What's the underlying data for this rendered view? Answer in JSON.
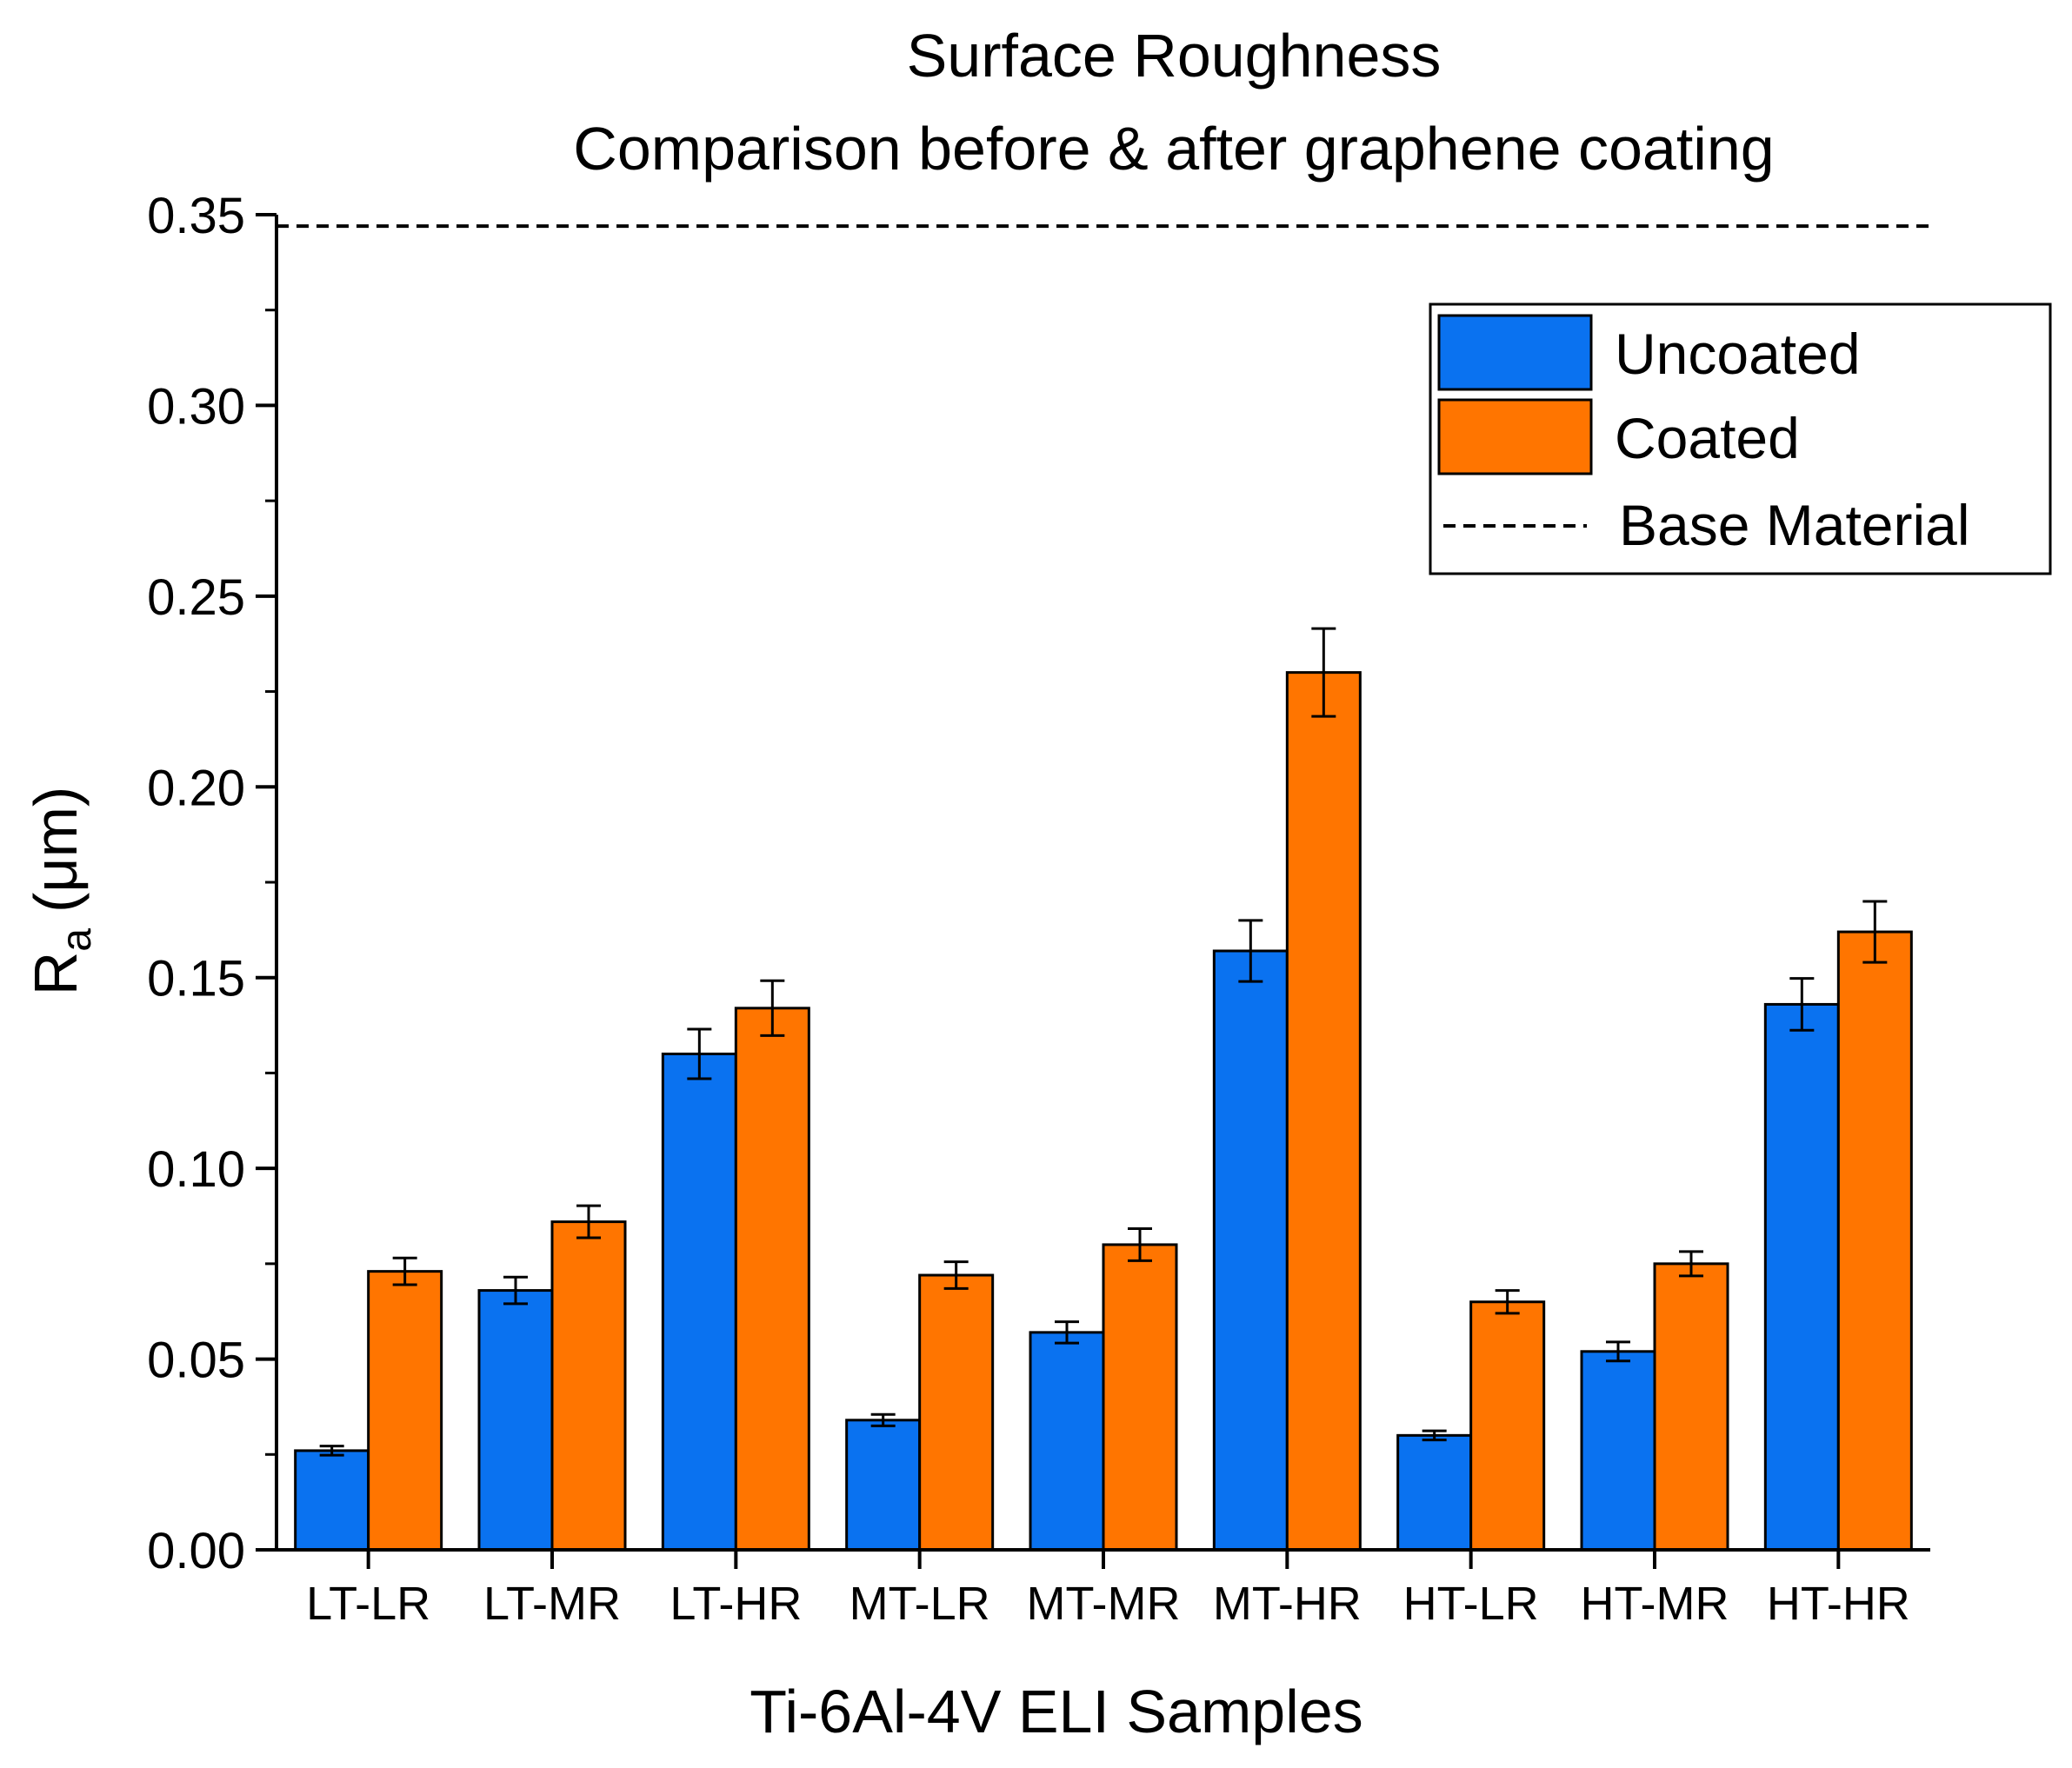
{
  "chart_data": {
    "type": "bar",
    "title": "Surface Roughness",
    "subtitle": "Comparison before & after graphene coating",
    "xlabel": "Ti-6Al-4V ELI Samples",
    "ylabel_main": "R",
    "ylabel_sub": "a",
    "ylabel_unit": "(μm)",
    "ylim": [
      0,
      0.35
    ],
    "yticks": [
      "0.00",
      "0.05",
      "0.10",
      "0.15",
      "0.20",
      "0.25",
      "0.30",
      "0.35"
    ],
    "categories": [
      "LT-LR",
      "LT-MR",
      "LT-HR",
      "MT-LR",
      "MT-MR",
      "MT-HR",
      "HT-LR",
      "HT-MR",
      "HT-HR"
    ],
    "series": [
      {
        "name": "Uncoated",
        "color": "#0a72f0",
        "values": [
          0.026,
          0.068,
          0.13,
          0.034,
          0.057,
          0.157,
          0.03,
          0.052,
          0.143
        ],
        "errors": [
          0.0012,
          0.0035,
          0.0065,
          0.0015,
          0.0028,
          0.008,
          0.0012,
          0.0025,
          0.0068
        ]
      },
      {
        "name": "Coated",
        "color": "#ff7500",
        "values": [
          0.073,
          0.086,
          0.142,
          0.072,
          0.08,
          0.23,
          0.065,
          0.075,
          0.162
        ],
        "errors": [
          0.0035,
          0.0042,
          0.0072,
          0.0035,
          0.0042,
          0.0115,
          0.003,
          0.0032,
          0.008
        ]
      }
    ],
    "reference_line": {
      "name": "Base Material",
      "value": 0.347,
      "style": "dashed"
    },
    "legend_position": "top-right",
    "grid": false
  }
}
